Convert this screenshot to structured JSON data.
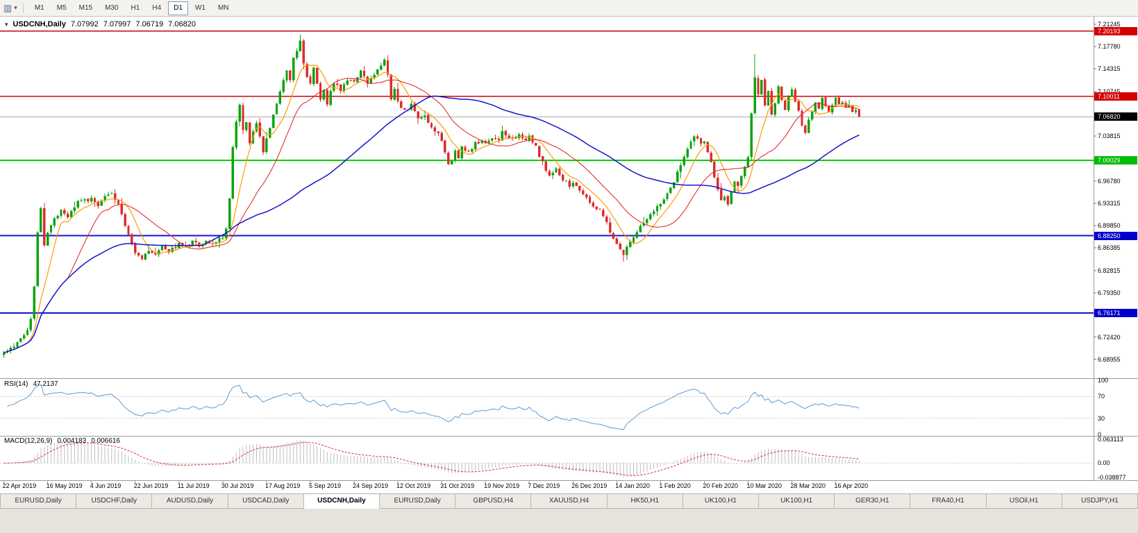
{
  "toolbar": {
    "timeframes": [
      "M1",
      "M5",
      "M15",
      "M30",
      "H1",
      "H4",
      "D1",
      "W1",
      "MN"
    ],
    "active": "D1",
    "icons": {
      "chart_type": "▥",
      "caret": "▾"
    }
  },
  "chart": {
    "title": "USDCNH,Daily",
    "context_icon": "▾",
    "ohlc": {
      "open": "7.07992",
      "high": "7.07997",
      "low": "7.06719",
      "close": "7.06820"
    },
    "price_axis": {
      "ticks": [
        "7.21245",
        "7.17780",
        "7.14315",
        "7.10745",
        "7.03815",
        "6.96780",
        "6.93315",
        "6.89850",
        "6.86385",
        "6.82815",
        "6.79350",
        "6.72420",
        "6.68955"
      ],
      "badges": [
        {
          "value": "7.20193",
          "color": "#D40000",
          "type": "resistance-line"
        },
        {
          "value": "7.10011",
          "color": "#D40000",
          "type": "resistance-line"
        },
        {
          "value": "7.06820",
          "color": "#000000",
          "type": "current-price"
        },
        {
          "value": "7.00029",
          "color": "#00BB00",
          "type": "support-line"
        },
        {
          "value": "6.88250",
          "color": "#0000CC",
          "type": "support-line"
        },
        {
          "value": "6.76171",
          "color": "#0000CC",
          "type": "support-line"
        }
      ]
    }
  },
  "rsi": {
    "label": "RSI(14)",
    "value": "47.2137",
    "axis_labels": [
      "100",
      "70",
      "30",
      "0"
    ]
  },
  "macd": {
    "label": "MACD(12,26,9)",
    "main_value": "0.004183",
    "signal_value": "0.006616",
    "axis_labels": {
      "max": "0.063113",
      "zero": "0.00",
      "min": "-0.038877"
    }
  },
  "date_axis": {
    "labels": [
      "22 Apr 2019",
      "16 May 2019",
      "4 Jun 2019",
      "22 Jun 2019",
      "11 Jul 2019",
      "30 Jul 2019",
      "17 Aug 2019",
      "5 Sep 2019",
      "24 Sep 2019",
      "12 Oct 2019",
      "31 Oct 2019",
      "19 Nov 2019",
      "7 Dec 2019",
      "26 Dec 2019",
      "14 Jan 2020",
      "1 Feb 2020",
      "20 Feb 2020",
      "10 Mar 2020",
      "28 Mar 2020",
      "16 Apr 2020"
    ]
  },
  "tabs": {
    "items": [
      "EURUSD,Daily",
      "USDCHF,Daily",
      "AUDUSD,Daily",
      "USDCAD,Daily",
      "USDCNH,Daily",
      "EURUSD,Daily",
      "GBPUSD,H4",
      "XAUUSD,H4",
      "HK50,H1",
      "UK100,H1",
      "UK100,H1",
      "GER30,H1",
      "FRA40,H1",
      "USOil,H1",
      "USDJPY,H1"
    ],
    "active_index": 4
  },
  "chart_data": {
    "type": "candlestick",
    "symbol": "USDCNH",
    "timeframe": "Daily",
    "title": "USDCNH,Daily 7.07992 7.07997 7.06719 7.06820",
    "ylim": [
      6.66,
      7.2245
    ],
    "num_bars": 255,
    "bars_per_x_label": 13,
    "x_labels": [
      "22 Apr 2019",
      "16 May 2019",
      "4 Jun 2019",
      "22 Jun 2019",
      "11 Jul 2019",
      "30 Jul 2019",
      "17 Aug 2019",
      "5 Sep 2019",
      "24 Sep 2019",
      "12 Oct 2019",
      "31 Oct 2019",
      "19 Nov 2019",
      "7 Dec 2019",
      "26 Dec 2019",
      "14 Jan 2020",
      "1 Feb 2020",
      "20 Feb 2020",
      "10 Mar 2020",
      "28 Mar 2020",
      "16 Apr 2020"
    ],
    "last_bar": {
      "open": 7.07992,
      "high": 7.07997,
      "low": 7.06719,
      "close": 7.0682
    },
    "extremes": {
      "cycle_high": [
        88,
        7.1965
      ],
      "jan_low": [
        184,
        6.842
      ],
      "mar_high": [
        223,
        7.166
      ]
    },
    "price_path_anchors": [
      [
        0,
        6.7
      ],
      [
        2,
        6.708
      ],
      [
        4,
        6.714
      ],
      [
        6,
        6.726
      ],
      [
        7,
        6.737
      ],
      [
        8,
        6.752
      ],
      [
        9,
        6.8
      ],
      [
        10,
        6.89
      ],
      [
        11,
        6.928
      ],
      [
        12,
        6.868
      ],
      [
        13,
        6.888
      ],
      [
        15,
        6.908
      ],
      [
        17,
        6.92
      ],
      [
        19,
        6.912
      ],
      [
        21,
        6.928
      ],
      [
        23,
        6.94
      ],
      [
        25,
        6.934
      ],
      [
        26,
        6.944
      ],
      [
        28,
        6.93
      ],
      [
        30,
        6.942
      ],
      [
        32,
        6.95
      ],
      [
        34,
        6.93
      ],
      [
        36,
        6.9
      ],
      [
        38,
        6.872
      ],
      [
        39,
        6.858
      ],
      [
        41,
        6.846
      ],
      [
        43,
        6.861
      ],
      [
        45,
        6.852
      ],
      [
        47,
        6.867
      ],
      [
        49,
        6.857
      ],
      [
        51,
        6.865
      ],
      [
        52,
        6.871
      ],
      [
        54,
        6.866
      ],
      [
        56,
        6.873
      ],
      [
        58,
        6.868
      ],
      [
        60,
        6.875
      ],
      [
        62,
        6.87
      ],
      [
        64,
        6.877
      ],
      [
        65,
        6.882
      ],
      [
        66,
        6.896
      ],
      [
        67,
        6.942
      ],
      [
        68,
        7.022
      ],
      [
        69,
        7.058
      ],
      [
        70,
        7.084
      ],
      [
        71,
        7.046
      ],
      [
        72,
        7.06
      ],
      [
        73,
        7.028
      ],
      [
        74,
        7.046
      ],
      [
        75,
        7.061
      ],
      [
        76,
        7.04
      ],
      [
        77,
        7.012
      ],
      [
        78,
        7.035
      ],
      [
        79,
        7.052
      ],
      [
        80,
        7.07
      ],
      [
        82,
        7.105
      ],
      [
        84,
        7.142
      ],
      [
        85,
        7.128
      ],
      [
        86,
        7.158
      ],
      [
        87,
        7.172
      ],
      [
        88,
        7.186
      ],
      [
        89,
        7.152
      ],
      [
        90,
        7.132
      ],
      [
        91,
        7.118
      ],
      [
        92,
        7.146
      ],
      [
        93,
        7.122
      ],
      [
        94,
        7.096
      ],
      [
        95,
        7.112
      ],
      [
        96,
        7.088
      ],
      [
        97,
        7.106
      ],
      [
        98,
        7.121
      ],
      [
        100,
        7.111
      ],
      [
        102,
        7.128
      ],
      [
        104,
        7.124
      ],
      [
        106,
        7.139
      ],
      [
        108,
        7.121
      ],
      [
        110,
        7.136
      ],
      [
        112,
        7.15
      ],
      [
        113,
        7.159
      ],
      [
        114,
        7.132
      ],
      [
        115,
        7.098
      ],
      [
        116,
        7.112
      ],
      [
        117,
        7.092
      ],
      [
        119,
        7.077
      ],
      [
        121,
        7.086
      ],
      [
        123,
        7.066
      ],
      [
        125,
        7.071
      ],
      [
        127,
        7.052
      ],
      [
        129,
        7.041
      ],
      [
        130,
        7.031
      ],
      [
        131,
        7.012
      ],
      [
        132,
        6.992
      ],
      [
        133,
        7.001
      ],
      [
        134,
        7.014
      ],
      [
        135,
        7.006
      ],
      [
        136,
        7.021
      ],
      [
        138,
        7.012
      ],
      [
        140,
        7.026
      ],
      [
        142,
        7.031
      ],
      [
        143,
        7.026
      ],
      [
        145,
        7.036
      ],
      [
        147,
        7.029
      ],
      [
        148,
        7.044
      ],
      [
        149,
        7.038
      ],
      [
        151,
        7.034
      ],
      [
        153,
        7.041
      ],
      [
        155,
        7.031
      ],
      [
        156,
        7.036
      ],
      [
        158,
        7.021
      ],
      [
        160,
        6.996
      ],
      [
        162,
        6.976
      ],
      [
        164,
        6.986
      ],
      [
        166,
        6.971
      ],
      [
        168,
        6.961
      ],
      [
        169,
        6.966
      ],
      [
        171,
        6.951
      ],
      [
        173,
        6.941
      ],
      [
        175,
        6.931
      ],
      [
        177,
        6.921
      ],
      [
        179,
        6.901
      ],
      [
        181,
        6.878
      ],
      [
        183,
        6.858
      ],
      [
        184,
        6.85
      ],
      [
        185,
        6.863
      ],
      [
        187,
        6.881
      ],
      [
        189,
        6.896
      ],
      [
        191,
        6.906
      ],
      [
        193,
        6.921
      ],
      [
        195,
        6.931
      ],
      [
        197,
        6.949
      ],
      [
        199,
        6.969
      ],
      [
        201,
        6.994
      ],
      [
        203,
        7.019
      ],
      [
        205,
        7.039
      ],
      [
        207,
        7.026
      ],
      [
        208,
        7.031
      ],
      [
        209,
        7.011
      ],
      [
        210,
        6.996
      ],
      [
        211,
        6.976
      ],
      [
        212,
        6.956
      ],
      [
        213,
        6.936
      ],
      [
        214,
        6.946
      ],
      [
        215,
        6.931
      ],
      [
        216,
        6.951
      ],
      [
        217,
        6.966
      ],
      [
        218,
        6.961
      ],
      [
        219,
        6.973
      ],
      [
        220,
        6.991
      ],
      [
        221,
        7.006
      ],
      [
        222,
        7.072
      ],
      [
        223,
        7.128
      ],
      [
        224,
        7.101
      ],
      [
        225,
        7.124
      ],
      [
        226,
        7.086
      ],
      [
        227,
        7.106
      ],
      [
        228,
        7.071
      ],
      [
        229,
        7.091
      ],
      [
        230,
        7.114
      ],
      [
        231,
        7.096
      ],
      [
        232,
        7.081
      ],
      [
        233,
        7.101
      ],
      [
        234,
        7.111
      ],
      [
        235,
        7.091
      ],
      [
        236,
        7.076
      ],
      [
        237,
        7.056
      ],
      [
        238,
        7.042
      ],
      [
        239,
        7.061
      ],
      [
        240,
        7.076
      ],
      [
        241,
        7.091
      ],
      [
        242,
        7.081
      ],
      [
        243,
        7.096
      ],
      [
        244,
        7.086
      ],
      [
        245,
        7.076
      ],
      [
        246,
        7.089
      ],
      [
        247,
        7.096
      ],
      [
        248,
        7.086
      ],
      [
        249,
        7.093
      ],
      [
        250,
        7.081
      ],
      [
        251,
        7.086
      ],
      [
        252,
        7.076
      ],
      [
        253,
        7.08
      ],
      [
        254,
        7.068
      ]
    ],
    "horizontal_lines": [
      {
        "price": 7.20193,
        "color": "#D40000",
        "width": 1.5
      },
      {
        "price": 7.10011,
        "color": "#D40000",
        "width": 1.5
      },
      {
        "price": 7.00029,
        "color": "#00D400",
        "width": 2
      },
      {
        "price": 6.8825,
        "color": "#1414CC",
        "width": 2
      },
      {
        "price": 6.76171,
        "color": "#1414CC",
        "width": 2
      }
    ],
    "current_price_line": {
      "price": 7.0682,
      "color": "#aaaaaa"
    },
    "candle_colors": {
      "up": "#0DA30D",
      "down": "#DD2C2C"
    },
    "moving_averages": [
      {
        "period": 8,
        "color": "#FF9900",
        "width": 1.2
      },
      {
        "period": 20,
        "color": "#E03030",
        "width": 1.1
      },
      {
        "period": 60,
        "color": "#1414CC",
        "width": 1.5
      }
    ],
    "indicators": [
      {
        "type": "RSI",
        "period": 14,
        "current": 47.2137,
        "range": [
          0,
          100
        ],
        "levels": [
          70,
          30
        ],
        "color": "#5b9bd5"
      },
      {
        "type": "MACD",
        "fast": 12,
        "slow": 26,
        "signal": 9,
        "current_main": 0.004183,
        "current_signal": 0.006616,
        "range": [
          -0.038877,
          0.063113
        ],
        "histogram_color": "#bdbdbd",
        "signal_color": "#DD2C2C"
      }
    ]
  }
}
